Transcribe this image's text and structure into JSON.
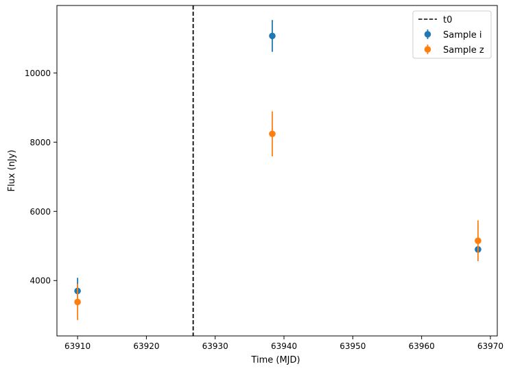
{
  "chart_data": {
    "type": "scatter",
    "title": "",
    "xlabel": "Time (MJD)",
    "ylabel": "Flux (nJy)",
    "xlim": [
      63907,
      63971
    ],
    "ylim": [
      2400,
      11950
    ],
    "xticks": [
      63910,
      63920,
      63930,
      63940,
      63950,
      63960,
      63970
    ],
    "xtick_labels": [
      "63910",
      "63920",
      "63930",
      "63940",
      "63950",
      "63960",
      "63970"
    ],
    "yticks": [
      4000,
      6000,
      8000,
      10000
    ],
    "ytick_labels": [
      "4000",
      "6000",
      "8000",
      "10000"
    ],
    "grid": false,
    "legend_position": "top-right",
    "vline": {
      "name": "t0",
      "x": 63926.8,
      "color": "#000000",
      "style": "dashed"
    },
    "series": [
      {
        "name": "Sample i",
        "color": "#1f77b4",
        "points": [
          {
            "x": 63910,
            "y": 3700,
            "err": 380
          },
          {
            "x": 63938.3,
            "y": 11070,
            "err": 460
          },
          {
            "x": 63968.2,
            "y": 4900,
            "err": null
          }
        ]
      },
      {
        "name": "Sample z",
        "color": "#ff7f0e",
        "points": [
          {
            "x": 63910,
            "y": 3380,
            "err": 520
          },
          {
            "x": 63938.3,
            "y": 8240,
            "err": 650
          },
          {
            "x": 63968.2,
            "y": 5150,
            "err": 590
          }
        ]
      }
    ]
  }
}
